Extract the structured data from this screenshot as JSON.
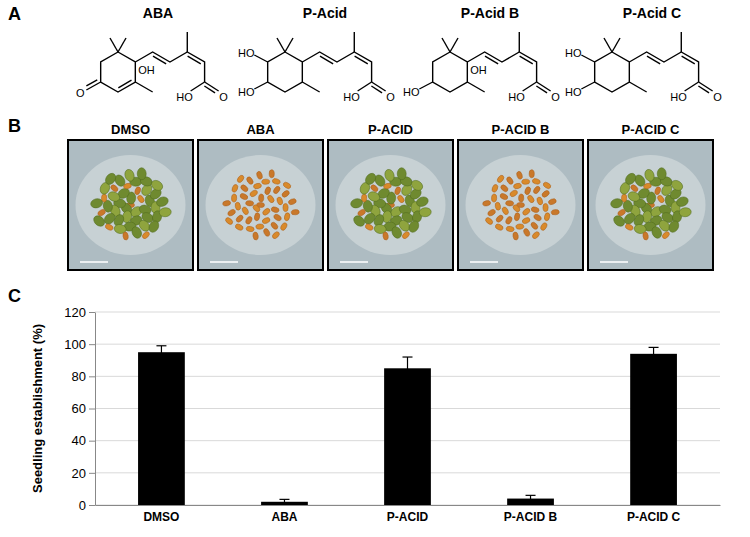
{
  "panel_labels": [
    "A",
    "B",
    "C"
  ],
  "structures": [
    {
      "name": "ABA",
      "labels": [
        "OH",
        "O",
        "HO",
        "O"
      ]
    },
    {
      "name": "P-Acid",
      "labels": [
        "HO",
        "HO",
        "HO",
        "O"
      ]
    },
    {
      "name": "P-Acid B",
      "labels": [
        "OH",
        "HO",
        "HO",
        "O"
      ]
    },
    {
      "name": "P-Acid C",
      "labels": [
        "HO",
        "HO",
        "HO",
        "O"
      ]
    }
  ],
  "photos": [
    "DMSO",
    "ABA",
    "P-ACID",
    "P-ACID B",
    "P-ACID C"
  ],
  "chart_data": {
    "type": "bar",
    "y_label": "Seedling establishment (%)",
    "categories": [
      "DMSO",
      "ABA",
      "P-ACID",
      "P-ACID B",
      "P-ACID C"
    ],
    "values": [
      95,
      2,
      85,
      4,
      94
    ],
    "errors": [
      4,
      1.5,
      7,
      2,
      4
    ],
    "color": "#000000",
    "ylim": [
      0,
      120
    ],
    "yticks": [
      0,
      20,
      40,
      60,
      80,
      100,
      120
    ],
    "grid": true
  }
}
